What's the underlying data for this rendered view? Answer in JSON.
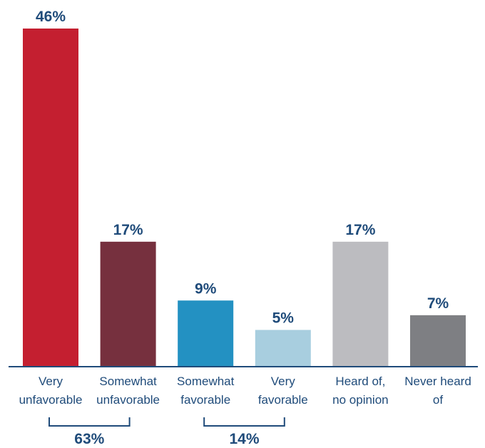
{
  "chart_data": {
    "type": "bar",
    "categories": [
      [
        "Very",
        "unfavorable"
      ],
      [
        "Somewhat",
        "unfavorable"
      ],
      [
        "Somewhat",
        "favorable"
      ],
      [
        "Very",
        "favorable"
      ],
      [
        "Heard of,",
        "no opinion"
      ],
      [
        "Never heard",
        "of"
      ]
    ],
    "values": [
      46,
      17,
      9,
      5,
      17,
      7
    ],
    "value_labels": [
      "46%",
      "17%",
      "9%",
      "5%",
      "17%",
      "7%"
    ],
    "colors": [
      "#c41f30",
      "#76303e",
      "#2391c2",
      "#a8cedf",
      "#bcbcc0",
      "#7e7f83"
    ],
    "ylim": [
      0,
      46
    ],
    "grid": false,
    "groups": [
      {
        "label": "63%",
        "from": 0,
        "to": 1
      },
      {
        "label": "14%",
        "from": 2,
        "to": 3
      }
    ]
  },
  "colors": {
    "text": "#1f4b7a",
    "axis": "#1f4b7a",
    "bracket": "#1f4b7a"
  }
}
